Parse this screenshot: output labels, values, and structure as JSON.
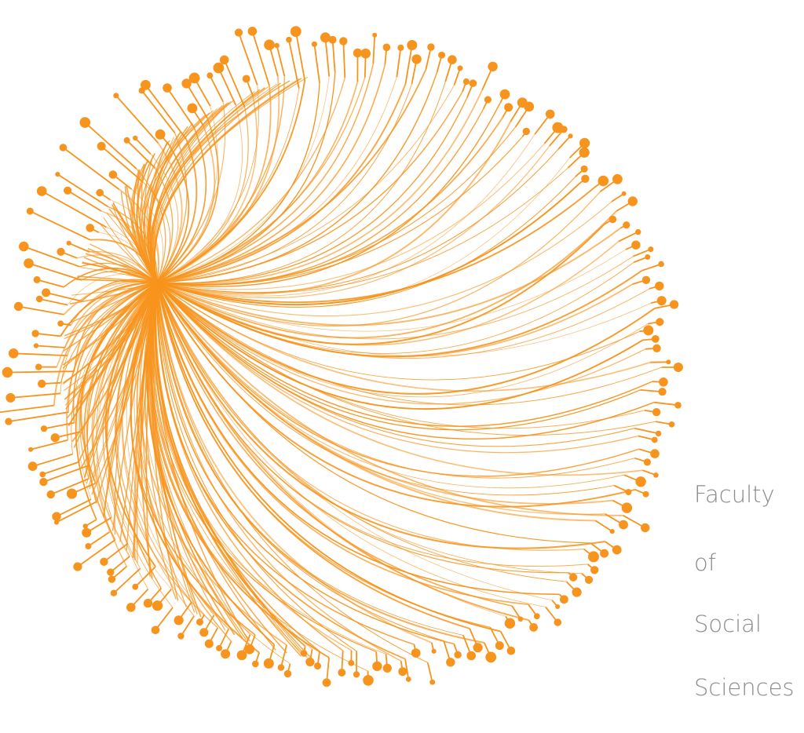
{
  "label": {
    "lines": [
      "Faculty",
      "of",
      "Social",
      "Sciences"
    ]
  }
}
